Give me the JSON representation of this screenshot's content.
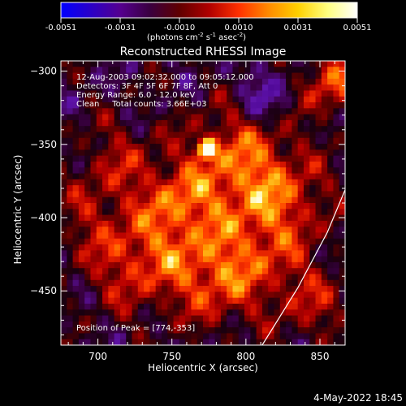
{
  "colorbar": {
    "ticks": [
      "-0.0051",
      "-0.0031",
      "-0.0010",
      "0.0010",
      "0.0031",
      "0.0051"
    ],
    "units_main": "(photons cm",
    "units_exp1": "-2",
    "units_mid": " s",
    "units_exp2": "-1",
    "units_end": " asec",
    "units_exp3": "-2",
    "units_close": ")",
    "colors": [
      "#0000ff",
      "#2a00c8",
      "#55008f",
      "#3a0040",
      "#600000",
      "#b00000",
      "#ff3000",
      "#ff8a00",
      "#ffd000",
      "#ffff80",
      "#ffffff"
    ]
  },
  "chart_data": {
    "type": "heatmap",
    "title": "Reconstructed RHESSI Image",
    "xlabel": "Heliocentric X (arcsec)",
    "ylabel": "Heliocentric Y (arcsec)",
    "xlim": [
      675,
      867
    ],
    "ylim": [
      -487,
      -293
    ],
    "x_ticks": [
      700,
      750,
      800,
      850
    ],
    "y_ticks": [
      -300,
      -350,
      -400,
      -450
    ],
    "color_range": [
      -0.0051,
      0.0051
    ],
    "peak": [
      774,
      -353
    ],
    "annotations": [
      "12-Aug-2003 09:02:32.000 to 09:05:12.000",
      "Detectors: 3F 4F 5F 6F 7F 8F, Att 0",
      "Energy Range: 6.0 - 12.0 keV",
      "Clean     Total counts: 3.66E+03"
    ],
    "peak_label": "Position of Peak = [774,-353]",
    "limb_points": [
      [
        811,
        -487
      ],
      [
        835,
        -448
      ],
      [
        855,
        -410
      ],
      [
        867,
        -381
      ]
    ]
  },
  "footer": {
    "date": "4-May-2022 18:45"
  }
}
